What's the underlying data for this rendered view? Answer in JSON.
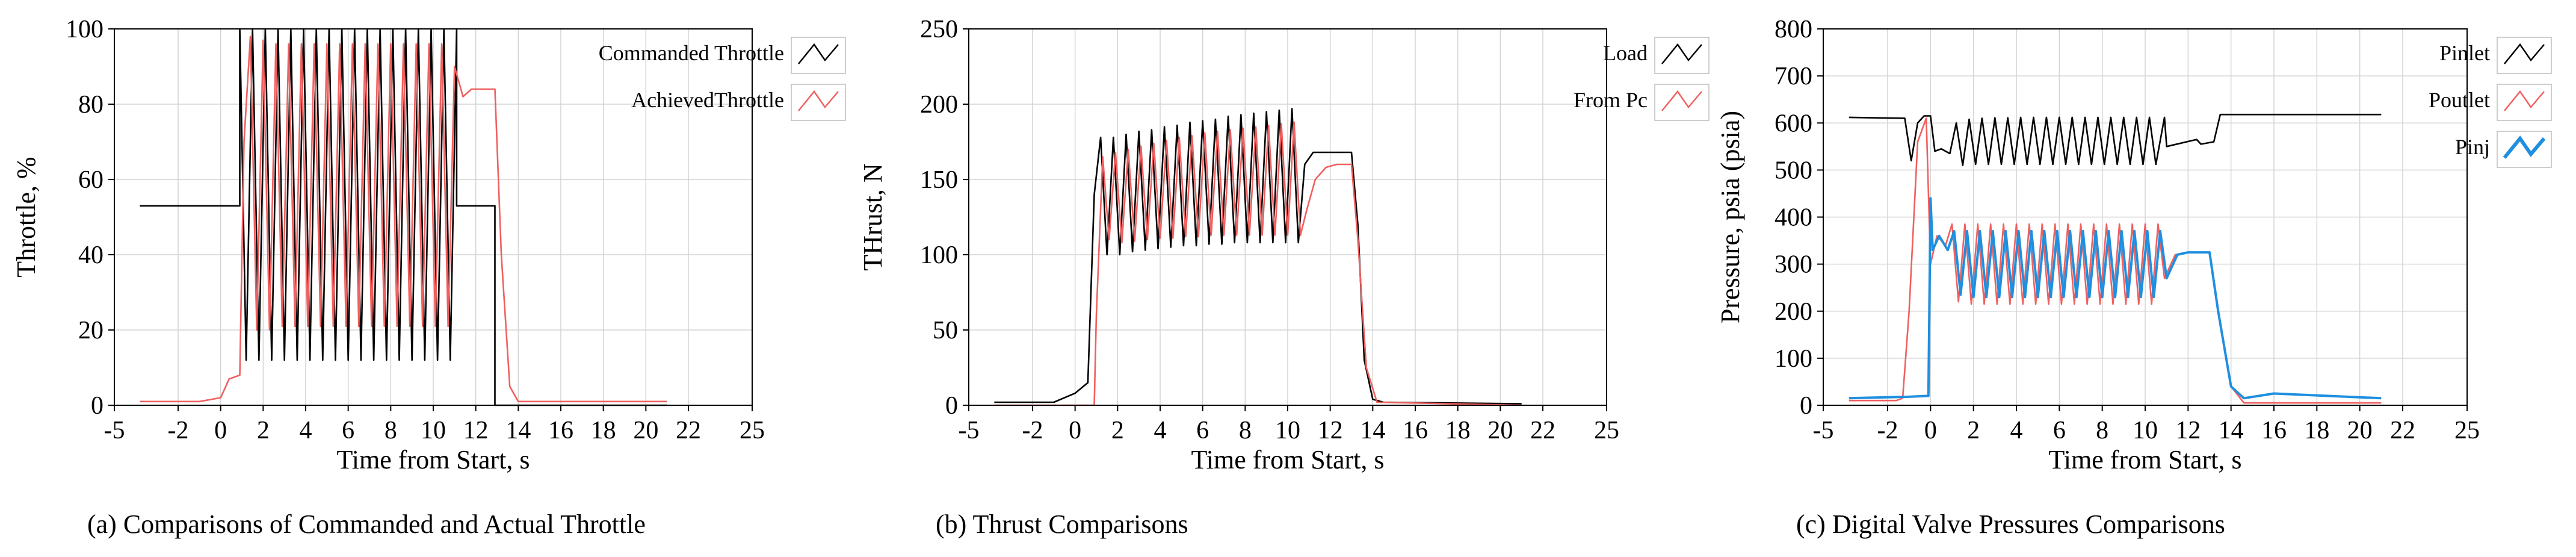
{
  "chart_data": [
    {
      "type": "line",
      "xlabel": "Time from  Start, s",
      "ylabel": "Throttle, %",
      "xlim": [
        -5,
        25
      ],
      "ylim": [
        0,
        100
      ],
      "xticks": [
        -5,
        -2,
        0,
        2,
        4,
        6,
        8,
        10,
        12,
        14,
        16,
        18,
        20,
        22,
        25
      ],
      "yticks": [
        0,
        20,
        40,
        60,
        80,
        100
      ],
      "grid": true,
      "legend_position": "top-right",
      "caption": "(a) Comparisons of Commanded and Actual Throttle",
      "series": [
        {
          "name": "Commanded Throttle",
          "color": "#000000",
          "x": [
            -3.8,
            0.9,
            0.9,
            1.2,
            1.5,
            1.8,
            2.1,
            2.4,
            2.7,
            3.0,
            3.3,
            3.6,
            3.9,
            4.2,
            4.5,
            4.8,
            5.1,
            5.4,
            5.7,
            6.0,
            6.3,
            6.6,
            6.9,
            7.2,
            7.5,
            7.8,
            8.1,
            8.4,
            8.7,
            9.0,
            9.3,
            9.6,
            9.9,
            10.2,
            10.5,
            10.8,
            11.1,
            11.1,
            12.9,
            12.9,
            21.0
          ],
          "y": [
            53,
            53,
            100,
            12,
            100,
            12,
            100,
            12,
            100,
            12,
            100,
            12,
            100,
            12,
            100,
            12,
            100,
            12,
            100,
            12,
            100,
            12,
            100,
            12,
            100,
            12,
            100,
            12,
            100,
            12,
            100,
            12,
            100,
            12,
            100,
            12,
            100,
            53,
            53,
            0,
            0
          ]
        },
        {
          "name": "AchievedThrottle",
          "color": "#f06060",
          "x": [
            -3.8,
            -1.0,
            0.0,
            0.4,
            0.9,
            1.1,
            1.4,
            1.7,
            2.0,
            2.3,
            2.6,
            2.9,
            3.2,
            3.5,
            3.8,
            4.1,
            4.4,
            4.7,
            5.0,
            5.3,
            5.6,
            5.9,
            6.2,
            6.5,
            6.8,
            7.1,
            7.4,
            7.7,
            8.0,
            8.3,
            8.6,
            8.9,
            9.2,
            9.5,
            9.8,
            10.1,
            10.4,
            10.7,
            11.0,
            11.4,
            11.8,
            12.5,
            12.9,
            13.2,
            13.6,
            14.0,
            21.0
          ],
          "y": [
            1,
            1,
            2,
            7,
            8,
            70,
            98,
            20,
            97,
            20,
            96,
            21,
            96,
            21,
            96,
            21,
            96,
            21,
            96,
            21,
            96,
            21,
            96,
            21,
            96,
            21,
            96,
            21,
            96,
            21,
            96,
            21,
            96,
            21,
            96,
            21,
            96,
            21,
            90,
            82,
            84,
            84,
            84,
            40,
            5,
            1,
            1
          ]
        }
      ]
    },
    {
      "type": "line",
      "xlabel": "Time from  Start, s",
      "ylabel": "THrust, N",
      "xlim": [
        -5,
        25
      ],
      "ylim": [
        0,
        250
      ],
      "xticks": [
        -5,
        -2,
        0,
        2,
        4,
        6,
        8,
        10,
        12,
        14,
        16,
        18,
        20,
        22,
        25
      ],
      "yticks": [
        0,
        50,
        100,
        150,
        200,
        250
      ],
      "grid": true,
      "legend_position": "top-right",
      "caption": "(b) Thrust Comparisons",
      "series": [
        {
          "name": "Load",
          "color": "#000000",
          "x": [
            -3.8,
            -1.0,
            0.0,
            0.6,
            0.9,
            1.2,
            1.5,
            1.8,
            2.1,
            2.4,
            2.7,
            3.0,
            3.3,
            3.6,
            3.9,
            4.2,
            4.5,
            4.8,
            5.1,
            5.4,
            5.7,
            6.0,
            6.3,
            6.6,
            6.9,
            7.2,
            7.5,
            7.8,
            8.1,
            8.4,
            8.7,
            9.0,
            9.3,
            9.6,
            9.9,
            10.2,
            10.5,
            10.8,
            11.2,
            11.6,
            12.0,
            13.0,
            13.3,
            13.6,
            14.0,
            14.5,
            21.0
          ],
          "y": [
            2,
            2,
            8,
            15,
            140,
            178,
            100,
            178,
            100,
            180,
            102,
            182,
            103,
            183,
            104,
            185,
            105,
            186,
            106,
            188,
            106,
            189,
            107,
            190,
            107,
            192,
            108,
            193,
            108,
            194,
            108,
            195,
            108,
            196,
            108,
            197,
            108,
            160,
            168,
            168,
            168,
            168,
            120,
            30,
            4,
            2,
            1
          ]
        },
        {
          "name": "From Pc",
          "color": "#f06060",
          "x": [
            -3.8,
            0.9,
            1.0,
            1.3,
            1.6,
            1.9,
            2.2,
            2.5,
            2.8,
            3.1,
            3.4,
            3.7,
            4.0,
            4.3,
            4.6,
            4.9,
            5.2,
            5.5,
            5.8,
            6.1,
            6.4,
            6.7,
            7.0,
            7.3,
            7.6,
            7.9,
            8.2,
            8.5,
            8.8,
            9.1,
            9.4,
            9.7,
            10.0,
            10.3,
            10.6,
            10.9,
            11.3,
            11.8,
            12.3,
            13.0,
            13.3,
            13.7,
            14.2,
            21.0
          ],
          "y": [
            0,
            0,
            60,
            165,
            110,
            168,
            108,
            170,
            109,
            172,
            110,
            174,
            111,
            176,
            111,
            178,
            112,
            179,
            112,
            181,
            113,
            182,
            113,
            183,
            113,
            184,
            113,
            185,
            113,
            186,
            113,
            187,
            113,
            188,
            113,
            130,
            150,
            158,
            160,
            160,
            110,
            25,
            2,
            0
          ]
        }
      ]
    },
    {
      "type": "line",
      "xlabel": "Time from  Start, s",
      "ylabel": "Pressure, psia (psia)",
      "xlim": [
        -5,
        25
      ],
      "ylim": [
        0,
        800
      ],
      "xticks": [
        -5,
        -2,
        0,
        2,
        4,
        6,
        8,
        10,
        12,
        14,
        16,
        18,
        20,
        22,
        25
      ],
      "yticks": [
        0,
        100,
        200,
        300,
        400,
        500,
        600,
        700,
        800
      ],
      "grid": true,
      "legend_position": "top-right",
      "caption": "(c) Digital Valve Pressures Comparisons",
      "series": [
        {
          "name": "Pinlet",
          "color": "#000000",
          "x": [
            -3.8,
            -1.2,
            -0.9,
            -0.6,
            -0.3,
            0.0,
            0.2,
            0.5,
            0.9,
            1.2,
            1.5,
            1.8,
            2.1,
            2.4,
            2.7,
            3.0,
            3.3,
            3.6,
            3.9,
            4.2,
            4.5,
            4.8,
            5.1,
            5.4,
            5.7,
            6.0,
            6.3,
            6.6,
            6.9,
            7.2,
            7.5,
            7.8,
            8.1,
            8.4,
            8.7,
            9.0,
            9.3,
            9.6,
            9.9,
            10.2,
            10.5,
            10.9,
            11.0,
            12.4,
            12.6,
            13.2,
            13.5,
            21.0
          ],
          "y": [
            612,
            610,
            520,
            600,
            615,
            615,
            540,
            545,
            535,
            600,
            510,
            608,
            512,
            610,
            512,
            611,
            512,
            611,
            512,
            612,
            512,
            612,
            512,
            612,
            512,
            612,
            512,
            612,
            512,
            612,
            512,
            612,
            512,
            612,
            512,
            612,
            512,
            612,
            512,
            612,
            512,
            612,
            550,
            565,
            555,
            560,
            618,
            618
          ]
        },
        {
          "name": "Poutlet",
          "color": "#f06060",
          "x": [
            -3.8,
            -1.6,
            -1.3,
            -1.0,
            -0.6,
            -0.2,
            0.0,
            0.3,
            0.7,
            1.0,
            1.3,
            1.6,
            1.9,
            2.2,
            2.5,
            2.8,
            3.1,
            3.4,
            3.7,
            4.0,
            4.3,
            4.6,
            4.9,
            5.2,
            5.5,
            5.8,
            6.1,
            6.4,
            6.7,
            7.0,
            7.3,
            7.6,
            7.9,
            8.2,
            8.5,
            8.8,
            9.1,
            9.4,
            9.7,
            10.0,
            10.3,
            10.6,
            10.9,
            11.4,
            12.0,
            13.0,
            13.4,
            14.0,
            14.6,
            21.0
          ],
          "y": [
            10,
            10,
            15,
            200,
            560,
            610,
            300,
            360,
            340,
            385,
            220,
            385,
            215,
            385,
            215,
            385,
            215,
            385,
            215,
            385,
            215,
            385,
            215,
            385,
            215,
            385,
            215,
            385,
            215,
            385,
            215,
            385,
            215,
            385,
            215,
            385,
            215,
            385,
            215,
            385,
            215,
            385,
            270,
            320,
            325,
            325,
            200,
            40,
            5,
            5
          ]
        },
        {
          "name": "Pinj",
          "color": "#1f8fe0",
          "x": [
            -3.8,
            -1.0,
            -0.1,
            0.0,
            0.1,
            0.4,
            0.8,
            1.1,
            1.4,
            1.7,
            2.0,
            2.3,
            2.6,
            2.9,
            3.2,
            3.5,
            3.8,
            4.1,
            4.4,
            4.7,
            5.0,
            5.3,
            5.6,
            5.9,
            6.2,
            6.5,
            6.8,
            7.1,
            7.4,
            7.7,
            8.0,
            8.3,
            8.6,
            8.9,
            9.2,
            9.5,
            9.8,
            10.1,
            10.4,
            10.7,
            11.0,
            11.5,
            12.0,
            13.0,
            13.4,
            14.0,
            14.6,
            16.0,
            21.0
          ],
          "y": [
            15,
            18,
            20,
            440,
            330,
            360,
            330,
            370,
            235,
            370,
            230,
            370,
            230,
            370,
            230,
            370,
            230,
            370,
            230,
            370,
            230,
            370,
            230,
            370,
            230,
            370,
            230,
            370,
            230,
            370,
            230,
            370,
            230,
            370,
            230,
            370,
            230,
            370,
            230,
            370,
            270,
            320,
            325,
            325,
            200,
            40,
            15,
            25,
            15
          ]
        }
      ]
    }
  ]
}
